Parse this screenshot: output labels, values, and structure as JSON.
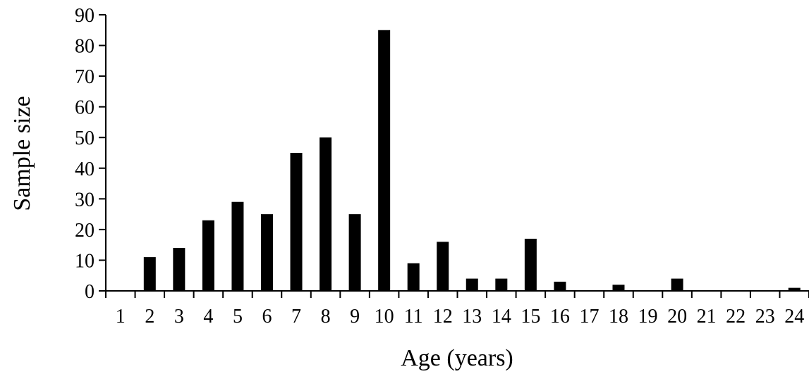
{
  "chart_data": {
    "type": "bar",
    "title": "",
    "xlabel": "Age (years)",
    "ylabel": "Sample size",
    "categories": [
      "1",
      "2",
      "3",
      "4",
      "5",
      "6",
      "7",
      "8",
      "9",
      "10",
      "11",
      "12",
      "13",
      "14",
      "15",
      "16",
      "17",
      "18",
      "19",
      "20",
      "21",
      "22",
      "23",
      "24"
    ],
    "values": [
      0,
      11,
      14,
      23,
      29,
      25,
      45,
      50,
      25,
      85,
      9,
      16,
      4,
      4,
      17,
      3,
      0,
      2,
      0,
      4,
      0,
      0,
      0,
      1
    ],
    "ylim": [
      0,
      90
    ],
    "yticks": [
      "0",
      "10",
      "20",
      "30",
      "40",
      "50",
      "60",
      "70",
      "80",
      "90"
    ],
    "grid": false,
    "legend": "none",
    "bar_color": "#000000"
  }
}
